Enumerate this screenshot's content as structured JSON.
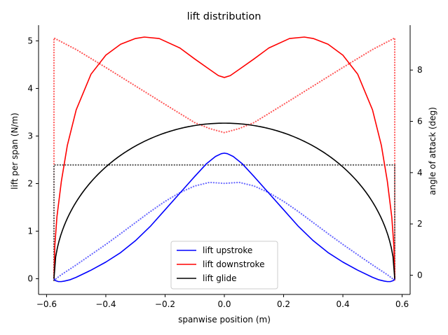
{
  "chart_data": {
    "type": "line",
    "title": "lift distribution",
    "xlabel": "spanwise position (m)",
    "ylabel": "lift per span (N/m)",
    "y2label": "angle of attack (deg)",
    "xlim": [
      -0.627,
      0.627
    ],
    "ylim": [
      -0.33,
      5.33
    ],
    "y2lim": [
      -0.75,
      9.75
    ],
    "xticks": [
      -0.6,
      -0.4,
      -0.2,
      0.0,
      0.2,
      0.4,
      0.6
    ],
    "xtick_labels": [
      "−0.6",
      "−0.4",
      "−0.2",
      "0.0",
      "0.2",
      "0.4",
      "0.6"
    ],
    "yticks": [
      0,
      1,
      2,
      3,
      4,
      5
    ],
    "ytick_labels": [
      "0",
      "1",
      "2",
      "3",
      "4",
      "5"
    ],
    "y2ticks": [
      0,
      2,
      4,
      6,
      8
    ],
    "y2tick_labels": [
      "0",
      "2",
      "4",
      "6",
      "8"
    ],
    "legend_position": "lower center",
    "series": [
      {
        "name": "lift upstroke",
        "axis": "left",
        "style": "solid",
        "color": "#0000ff",
        "x": [
          -0.575,
          -0.57,
          -0.56,
          -0.55,
          -0.54,
          -0.52,
          -0.5,
          -0.45,
          -0.4,
          -0.35,
          -0.3,
          -0.25,
          -0.2,
          -0.15,
          -0.1,
          -0.06,
          -0.03,
          -0.01,
          0.0,
          0.01,
          0.03,
          0.06,
          0.1,
          0.15,
          0.2,
          0.25,
          0.3,
          0.35,
          0.4,
          0.45,
          0.5,
          0.52,
          0.54,
          0.55,
          0.56,
          0.57,
          0.575
        ],
        "y": [
          0.0,
          -0.04,
          -0.06,
          -0.06,
          -0.05,
          -0.02,
          0.03,
          0.18,
          0.35,
          0.55,
          0.8,
          1.1,
          1.45,
          1.8,
          2.15,
          2.42,
          2.57,
          2.63,
          2.64,
          2.63,
          2.57,
          2.42,
          2.15,
          1.8,
          1.45,
          1.1,
          0.8,
          0.55,
          0.35,
          0.18,
          0.03,
          -0.02,
          -0.05,
          -0.06,
          -0.06,
          -0.04,
          0.0
        ]
      },
      {
        "name": "lift downstroke",
        "axis": "left",
        "style": "solid",
        "color": "#ff0000",
        "x": [
          -0.575,
          -0.572,
          -0.565,
          -0.55,
          -0.53,
          -0.5,
          -0.45,
          -0.4,
          -0.35,
          -0.3,
          -0.27,
          -0.22,
          -0.15,
          -0.1,
          -0.05,
          -0.02,
          0.0,
          0.02,
          0.05,
          0.1,
          0.15,
          0.22,
          0.27,
          0.3,
          0.35,
          0.4,
          0.45,
          0.5,
          0.53,
          0.55,
          0.565,
          0.572,
          0.575
        ],
        "y": [
          0.0,
          0.7,
          1.3,
          2.05,
          2.8,
          3.55,
          4.3,
          4.7,
          4.93,
          5.05,
          5.08,
          5.05,
          4.85,
          4.62,
          4.4,
          4.27,
          4.23,
          4.27,
          4.4,
          4.62,
          4.85,
          5.05,
          5.08,
          5.05,
          4.93,
          4.7,
          4.3,
          3.55,
          2.8,
          2.05,
          1.3,
          0.7,
          0.0
        ]
      },
      {
        "name": "lift glide",
        "axis": "left",
        "style": "solid",
        "color": "#000000",
        "shape": "semi-ellipse",
        "x_center": 0.0,
        "half_span": 0.575,
        "peak": 3.27
      },
      {
        "name": "angle of attack upstroke",
        "axis": "right",
        "style": "dotted",
        "color": "#6b6bff",
        "x": [
          -0.575,
          -0.55,
          -0.5,
          -0.45,
          -0.4,
          -0.35,
          -0.3,
          -0.25,
          -0.2,
          -0.15,
          -0.1,
          -0.05,
          0.0,
          0.05,
          0.1,
          0.15,
          0.2,
          0.25,
          0.3,
          0.35,
          0.4,
          0.45,
          0.5,
          0.55,
          0.575
        ],
        "y": [
          -0.2,
          0.02,
          0.4,
          0.8,
          1.2,
          1.62,
          2.05,
          2.48,
          2.88,
          3.22,
          3.48,
          3.62,
          3.58,
          3.62,
          3.48,
          3.22,
          2.88,
          2.48,
          2.05,
          1.62,
          1.2,
          0.8,
          0.4,
          0.02,
          -0.2
        ]
      },
      {
        "name": "angle of attack downstroke",
        "axis": "right",
        "style": "dotted",
        "color": "#ff5c5c",
        "x": [
          -0.575,
          -0.575,
          -0.5,
          -0.4,
          -0.3,
          -0.2,
          -0.1,
          -0.05,
          0.0,
          0.05,
          0.1,
          0.2,
          0.3,
          0.4,
          0.5,
          0.575,
          0.575
        ],
        "y": [
          -0.2,
          9.25,
          8.8,
          8.1,
          7.38,
          6.66,
          5.95,
          5.72,
          5.56,
          5.72,
          5.95,
          6.66,
          7.38,
          8.1,
          8.8,
          9.25,
          -0.2
        ]
      },
      {
        "name": "angle of attack glide",
        "axis": "right",
        "style": "dotted",
        "color": "#555555",
        "x": [
          -0.575,
          -0.575,
          0.575,
          0.575
        ],
        "y": [
          -0.2,
          4.3,
          4.3,
          -0.2
        ]
      }
    ],
    "legend": [
      "lift upstroke",
      "lift downstroke",
      "lift glide"
    ]
  }
}
